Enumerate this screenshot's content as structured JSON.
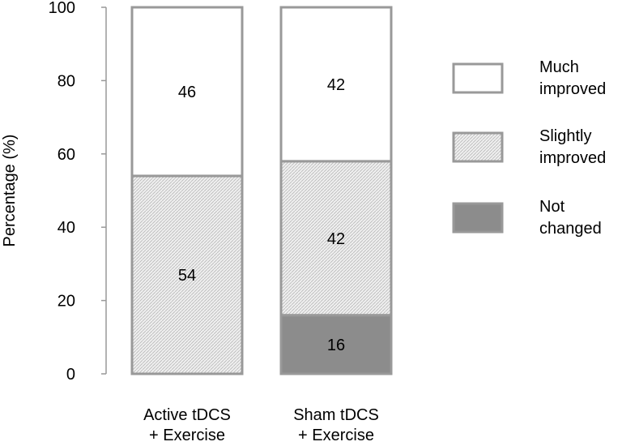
{
  "chart_data": {
    "type": "bar",
    "stacked": true,
    "ylabel": "Percentage (%)",
    "ylim": [
      0,
      100
    ],
    "yticks": [
      0,
      20,
      40,
      60,
      80,
      100
    ],
    "grid": false,
    "legend_position": "right",
    "categories": [
      [
        "Active tDCS",
        "+ Exercise"
      ],
      [
        "Sham tDCS",
        "+ Exercise"
      ]
    ],
    "series": [
      {
        "name": [
          "Not",
          "changed"
        ],
        "key": "not_changed",
        "color": "#8c8c8c",
        "pattern": "solid",
        "values": [
          0,
          16
        ],
        "labels": [
          "",
          "16"
        ]
      },
      {
        "name": [
          "Slightly",
          "improved"
        ],
        "key": "slightly_improved",
        "color": "#e4e4e4",
        "pattern": "hatched",
        "values": [
          54,
          42
        ],
        "labels": [
          "54",
          "42"
        ]
      },
      {
        "name": [
          "Much",
          "improved"
        ],
        "key": "much_improved",
        "color": "#ffffff",
        "pattern": "solid",
        "values": [
          46,
          42
        ],
        "labels": [
          "46",
          "42"
        ]
      }
    ],
    "legend_order": [
      "much_improved",
      "slightly_improved",
      "not_changed"
    ],
    "edge_color": "#999999"
  }
}
